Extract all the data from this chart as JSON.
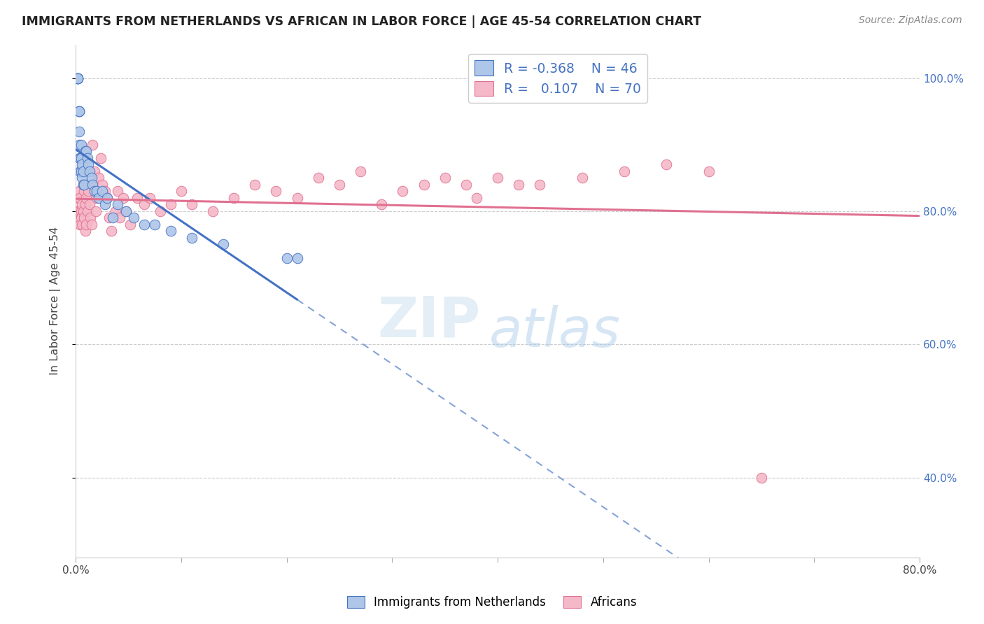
{
  "title": "IMMIGRANTS FROM NETHERLANDS VS AFRICAN IN LABOR FORCE | AGE 45-54 CORRELATION CHART",
  "source": "Source: ZipAtlas.com",
  "ylabel": "In Labor Force | Age 45-54",
  "xlim": [
    0.0,
    0.8
  ],
  "ylim": [
    0.28,
    1.05
  ],
  "yticks": [
    0.4,
    0.6,
    0.8,
    1.0
  ],
  "ytick_labels": [
    "40.0%",
    "60.0%",
    "80.0%",
    "100.0%"
  ],
  "xticks": [
    0.0,
    0.1,
    0.2,
    0.3,
    0.4,
    0.5,
    0.6,
    0.7,
    0.8
  ],
  "xtick_labels": [
    "0.0%",
    "",
    "",
    "",
    "",
    "",
    "",
    "",
    "80.0%"
  ],
  "netherlands_R": -0.368,
  "netherlands_N": 46,
  "africans_R": 0.107,
  "africans_N": 70,
  "netherlands_color": "#aec6e8",
  "africans_color": "#f5b8c8",
  "netherlands_line_color": "#4472c4",
  "africans_line_color": "#e07090",
  "netherlands_x": [
    0.002,
    0.002,
    0.002,
    0.002,
    0.002,
    0.003,
    0.003,
    0.003,
    0.003,
    0.003,
    0.004,
    0.004,
    0.004,
    0.004,
    0.005,
    0.005,
    0.005,
    0.006,
    0.006,
    0.007,
    0.007,
    0.008,
    0.009,
    0.01,
    0.011,
    0.012,
    0.013,
    0.015,
    0.016,
    0.018,
    0.02,
    0.022,
    0.025,
    0.028,
    0.03,
    0.035,
    0.04,
    0.048,
    0.055,
    0.065,
    0.075,
    0.09,
    0.11,
    0.14,
    0.2,
    0.21
  ],
  "netherlands_y": [
    1.0,
    1.0,
    1.0,
    1.0,
    1.0,
    0.95,
    0.95,
    0.95,
    0.92,
    0.9,
    0.88,
    0.88,
    0.88,
    0.86,
    0.86,
    0.88,
    0.9,
    0.87,
    0.85,
    0.86,
    0.84,
    0.84,
    0.89,
    0.89,
    0.88,
    0.87,
    0.86,
    0.85,
    0.84,
    0.83,
    0.83,
    0.82,
    0.83,
    0.81,
    0.82,
    0.79,
    0.81,
    0.8,
    0.79,
    0.78,
    0.78,
    0.77,
    0.76,
    0.75,
    0.73,
    0.73
  ],
  "africans_x": [
    0.002,
    0.002,
    0.003,
    0.003,
    0.004,
    0.004,
    0.005,
    0.005,
    0.006,
    0.006,
    0.007,
    0.007,
    0.008,
    0.008,
    0.009,
    0.009,
    0.01,
    0.01,
    0.011,
    0.012,
    0.013,
    0.014,
    0.015,
    0.016,
    0.017,
    0.018,
    0.019,
    0.02,
    0.022,
    0.024,
    0.025,
    0.028,
    0.03,
    0.032,
    0.034,
    0.038,
    0.04,
    0.042,
    0.045,
    0.048,
    0.052,
    0.058,
    0.065,
    0.07,
    0.08,
    0.09,
    0.1,
    0.11,
    0.13,
    0.15,
    0.17,
    0.19,
    0.21,
    0.23,
    0.25,
    0.27,
    0.29,
    0.31,
    0.33,
    0.35,
    0.37,
    0.38,
    0.4,
    0.42,
    0.44,
    0.48,
    0.52,
    0.56,
    0.6,
    0.65
  ],
  "africans_y": [
    0.82,
    0.8,
    0.83,
    0.8,
    0.82,
    0.78,
    0.8,
    0.79,
    0.81,
    0.78,
    0.84,
    0.8,
    0.83,
    0.79,
    0.81,
    0.77,
    0.82,
    0.78,
    0.8,
    0.83,
    0.81,
    0.79,
    0.78,
    0.9,
    0.84,
    0.86,
    0.8,
    0.82,
    0.85,
    0.88,
    0.84,
    0.83,
    0.82,
    0.79,
    0.77,
    0.8,
    0.83,
    0.79,
    0.82,
    0.8,
    0.78,
    0.82,
    0.81,
    0.82,
    0.8,
    0.81,
    0.83,
    0.81,
    0.8,
    0.82,
    0.84,
    0.83,
    0.82,
    0.85,
    0.84,
    0.86,
    0.81,
    0.83,
    0.84,
    0.85,
    0.84,
    0.82,
    0.85,
    0.84,
    0.84,
    0.85,
    0.86,
    0.87,
    0.86,
    0.4
  ],
  "watermark_zip": "ZIP",
  "watermark_atlas": "atlas",
  "background_color": "#ffffff",
  "grid_color": "#cccccc"
}
